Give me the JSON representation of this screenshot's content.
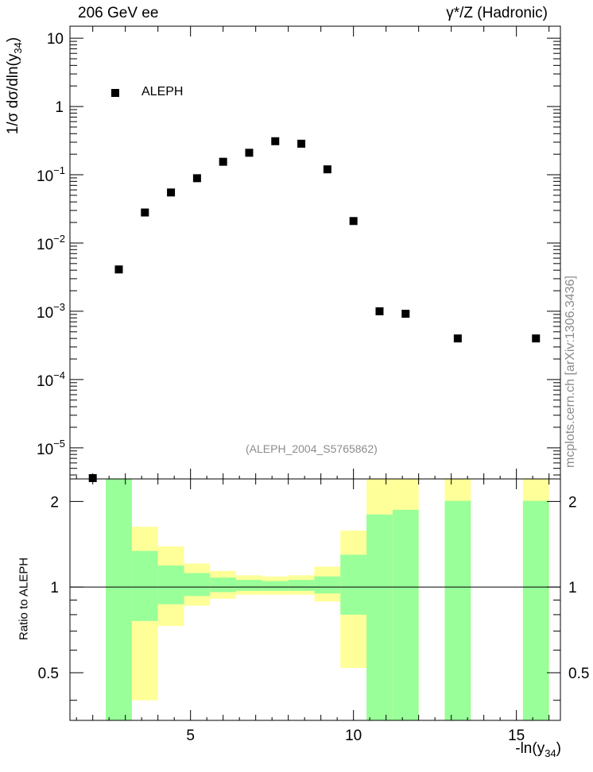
{
  "header": {
    "left": "206 GeV ee",
    "right": "γ*/Z (Hadronic)"
  },
  "watermark": "mcplots.cern.ch [arXiv:1306.3436]",
  "analysis_label": "(ALEPH_2004_S5765862)",
  "colors": {
    "marker": "#000000",
    "band_outer": "#ffff99",
    "band_inner": "#99ff99",
    "watermark": "#8c8c8c"
  },
  "chart_data": [
    {
      "type": "scatter",
      "panel": "main",
      "ylabel_prefix": "1/σ  dσ/dln(y",
      "ylabel_sub": "34",
      "ylabel_suffix": ")",
      "yscale": "log",
      "ylim": [
        3.5e-06,
        15
      ],
      "xlim": [
        1.3,
        16.35
      ],
      "y_ticks": [
        {
          "value": 10,
          "label": "10"
        },
        {
          "value": 1,
          "label": "1"
        },
        {
          "value": 0.1,
          "label": "10",
          "exp": "−1"
        },
        {
          "value": 0.01,
          "label": "10",
          "exp": "−2"
        },
        {
          "value": 0.001,
          "label": "10",
          "exp": "−3"
        },
        {
          "value": 0.0001,
          "label": "10",
          "exp": "−4"
        },
        {
          "value": 1e-05,
          "label": "10",
          "exp": "−5"
        }
      ],
      "legend": {
        "name": "ALEPH",
        "position": "top-left"
      },
      "series": [
        {
          "name": "ALEPH",
          "x": [
            2.0,
            2.8,
            3.6,
            4.4,
            5.2,
            6.0,
            6.8,
            7.6,
            8.4,
            9.2,
            10.0,
            10.8,
            11.6,
            13.2,
            15.6
          ],
          "y": [
            3.6e-06,
            0.0041,
            0.028,
            0.055,
            0.089,
            0.155,
            0.21,
            0.31,
            0.285,
            0.12,
            0.021,
            0.001,
            0.00092,
            0.0004,
            0.0004
          ]
        }
      ]
    },
    {
      "type": "area",
      "panel": "ratio",
      "ylabel": "Ratio to ALEPH",
      "xlabel_prefix": "-ln(y",
      "xlabel_sub": "34",
      "xlabel_suffix": ")",
      "yscale": "log",
      "ylim": [
        0.34,
        2.4
      ],
      "xlim": [
        1.3,
        16.35
      ],
      "x_ticks": [
        {
          "value": 5,
          "label": "5"
        },
        {
          "value": 10,
          "label": "10"
        },
        {
          "value": 15,
          "label": "15"
        }
      ],
      "y_ticks": [
        {
          "value": 2,
          "label": "2"
        },
        {
          "value": 1,
          "label": "1"
        },
        {
          "value": 0.5,
          "label": "0.5"
        }
      ],
      "reference_line": 1,
      "bands": [
        {
          "x0": 2.4,
          "x1": 3.2,
          "outer": [
            0.34,
            2.4
          ],
          "inner": [
            0.34,
            2.4
          ]
        },
        {
          "x0": 3.2,
          "x1": 4.0,
          "outer": [
            0.4,
            1.63
          ],
          "inner": [
            0.76,
            1.34
          ]
        },
        {
          "x0": 4.0,
          "x1": 4.8,
          "outer": [
            0.73,
            1.39
          ],
          "inner": [
            0.87,
            1.19
          ]
        },
        {
          "x0": 4.8,
          "x1": 5.6,
          "outer": [
            0.86,
            1.21
          ],
          "inner": [
            0.93,
            1.12
          ]
        },
        {
          "x0": 5.6,
          "x1": 6.4,
          "outer": [
            0.91,
            1.14
          ],
          "inner": [
            0.96,
            1.08
          ]
        },
        {
          "x0": 6.4,
          "x1": 7.2,
          "outer": [
            0.94,
            1.1
          ],
          "inner": [
            0.97,
            1.06
          ]
        },
        {
          "x0": 7.2,
          "x1": 8.0,
          "outer": [
            0.94,
            1.09
          ],
          "inner": [
            0.97,
            1.05
          ]
        },
        {
          "x0": 8.0,
          "x1": 8.8,
          "outer": [
            0.94,
            1.1
          ],
          "inner": [
            0.97,
            1.06
          ]
        },
        {
          "x0": 8.8,
          "x1": 9.6,
          "outer": [
            0.89,
            1.18
          ],
          "inner": [
            0.95,
            1.09
          ]
        },
        {
          "x0": 9.6,
          "x1": 10.4,
          "outer": [
            0.52,
            1.58
          ],
          "inner": [
            0.8,
            1.3
          ]
        },
        {
          "x0": 10.4,
          "x1": 11.2,
          "outer": [
            0.34,
            2.4
          ],
          "inner": [
            0.34,
            1.8
          ]
        },
        {
          "x0": 11.2,
          "x1": 12.0,
          "outer": [
            0.34,
            2.4
          ],
          "inner": [
            0.34,
            1.87
          ]
        },
        {
          "x0": 12.8,
          "x1": 13.6,
          "outer": [
            0.34,
            2.4
          ],
          "inner": [
            0.34,
            2.01
          ]
        },
        {
          "x0": 15.2,
          "x1": 16.0,
          "outer": [
            0.34,
            2.4
          ],
          "inner": [
            0.34,
            2.01
          ]
        }
      ]
    }
  ]
}
